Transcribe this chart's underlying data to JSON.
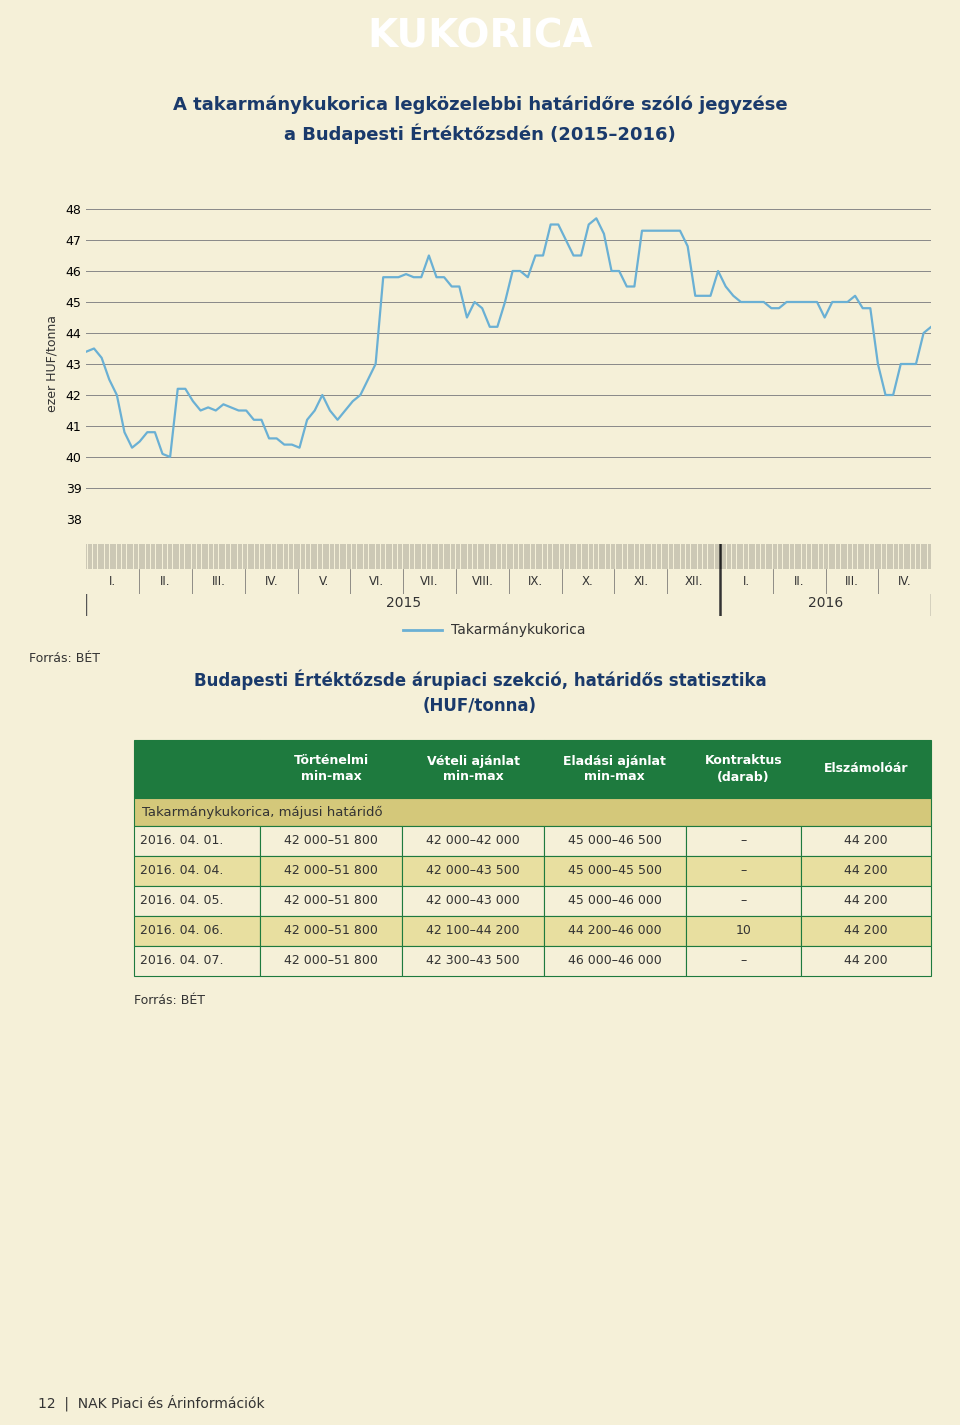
{
  "title_banner": "KUKORICA",
  "title_banner_bg": "#1e7a3e",
  "title_banner_fg": "#ffffff",
  "chart_title_line1": "A takarmánykukorica legközelebbi határidőre szóló jegyzése",
  "chart_title_line2": "a Budapesti Értéktőzsdén (2015–2016)",
  "chart_title_bg": "#8ab84a",
  "chart_title_fg": "#1a3a6b",
  "chart_area_bg": "#e8dfa0",
  "plot_bg": "#f5f0d8",
  "line_color": "#6ab0d4",
  "legend_label": "Takarmánykukorica",
  "ylabel": "ezer HUF/tonna",
  "ylim": [
    38,
    48
  ],
  "yticks": [
    38,
    39,
    40,
    41,
    42,
    43,
    44,
    45,
    46,
    47,
    48
  ],
  "x_months_2015": [
    "I.",
    "II.",
    "III.",
    "IV.",
    "V.",
    "VI.",
    "VII.",
    "VIII.",
    "IX.",
    "X.",
    "XI.",
    "XII."
  ],
  "x_months_2016": [
    "I.",
    "II.",
    "III.",
    "IV."
  ],
  "forras_chart": "Forrás: BÉT",
  "table_title": "Budapesti Értéktőzsde árupiaci szekció, határidős statisztika\n(HUF/tonna)",
  "table_title_bg": "#8ab84a",
  "table_title_fg": "#1a3a6b",
  "table_area_bg": "#e8dfa0",
  "table_header_bg": "#1e7a3e",
  "table_header_fg": "#ffffff",
  "table_subheader_bg": "#d4c87a",
  "table_subheader_fg": "#333333",
  "table_data_bg1": "#f5f0d8",
  "table_data_bg2": "#e8dfa0",
  "table_border_color": "#1e7a3e",
  "table_headers": [
    "Történelmi\nmin-max",
    "Vételi ajánlat\nmin-max",
    "Eladási ajánlat\nmin-max",
    "Kontraktus\n(darab)",
    "Elszámolóár"
  ],
  "table_subheader": "Takarmánykukorica, májusi határidő",
  "table_rows": [
    [
      "2016. 04. 01.",
      "42 000–51 800",
      "42 000–42 000",
      "45 000–46 500",
      "–",
      "44 200"
    ],
    [
      "2016. 04. 04.",
      "42 000–51 800",
      "42 000–43 500",
      "45 000–45 500",
      "–",
      "44 200"
    ],
    [
      "2016. 04. 05.",
      "42 000–51 800",
      "42 000–43 000",
      "45 000–46 000",
      "–",
      "44 200"
    ],
    [
      "2016. 04. 06.",
      "42 000–51 800",
      "42 100–44 200",
      "44 200–46 000",
      "10",
      "44 200"
    ],
    [
      "2016. 04. 07.",
      "42 000–51 800",
      "42 300–43 500",
      "46 000–46 000",
      "–",
      "44 200"
    ]
  ],
  "forras_table": "Forrás: BÉT",
  "footer_text": "12  |  NAK Piaci és Árinformációk",
  "page_bg": "#f5f0d8",
  "y_values": [
    43.4,
    43.5,
    43.2,
    42.5,
    42.0,
    40.8,
    40.3,
    40.5,
    40.8,
    40.8,
    40.1,
    40.0,
    42.2,
    42.2,
    41.8,
    41.5,
    41.6,
    41.5,
    41.7,
    41.6,
    41.5,
    41.5,
    41.2,
    41.2,
    40.6,
    40.6,
    40.4,
    40.4,
    40.3,
    41.2,
    41.5,
    42.0,
    41.5,
    41.2,
    41.5,
    41.8,
    42.0,
    42.5,
    43.0,
    45.8,
    45.8,
    45.8,
    45.9,
    45.8,
    45.8,
    46.5,
    45.8,
    45.8,
    45.5,
    45.5,
    44.5,
    45.0,
    44.8,
    44.2,
    44.2,
    45.0,
    46.0,
    46.0,
    45.8,
    46.5,
    46.5,
    47.5,
    47.5,
    47.0,
    46.5,
    46.5,
    47.5,
    47.7,
    47.2,
    46.0,
    46.0,
    45.5,
    45.5,
    47.3,
    47.3,
    47.3,
    47.3,
    47.3,
    47.3,
    46.8,
    45.2,
    45.2,
    45.2,
    46.0,
    45.5,
    45.2,
    45.0,
    45.0,
    45.0,
    45.0,
    44.8,
    44.8,
    45.0,
    45.0,
    45.0,
    45.0,
    45.0,
    44.5,
    45.0,
    45.0,
    45.0,
    45.2,
    44.8,
    44.8,
    43.0,
    42.0,
    42.0,
    43.0,
    43.0,
    43.0,
    44.0,
    44.2
  ]
}
